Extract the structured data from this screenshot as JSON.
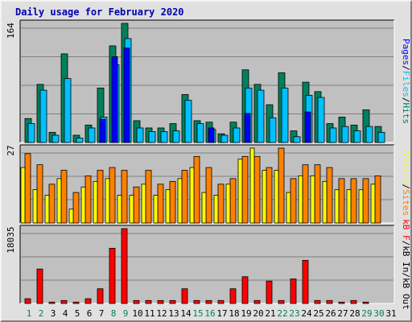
{
  "chart_data": {
    "type": "bar",
    "title": "Daily usage for February 2020",
    "days": [
      "1",
      "2",
      "3",
      "4",
      "5",
      "6",
      "7",
      "8",
      "9",
      "10",
      "11",
      "12",
      "13",
      "14",
      "15",
      "16",
      "17",
      "18",
      "19",
      "20",
      "21",
      "22",
      "23",
      "24",
      "25",
      "26",
      "27",
      "28",
      "29",
      "30",
      "31"
    ],
    "weekend_days": [
      "1",
      "2",
      "8",
      "9",
      "15",
      "16",
      "22",
      "23",
      "29",
      "30"
    ],
    "day_label_colors": {
      "weekday": "#000000",
      "weekend": "#00805c"
    },
    "panels": [
      {
        "name": "hits-files-pages",
        "max_label": "164",
        "ymax": 164,
        "legend": [
          "Pages",
          "Files",
          "Hits"
        ],
        "series": [
          {
            "name": "Hits",
            "color": "#00805c",
            "values": [
              33,
              80,
              14,
              122,
              10,
              24,
              75,
              133,
              164,
              30,
              20,
              20,
              26,
              66,
              30,
              28,
              12,
              28,
              100,
              80,
              52,
              96,
              16,
              83,
              70,
              26,
              35,
              24,
              45,
              22,
              0
            ]
          },
          {
            "name": "Files",
            "color": "#00c0ff",
            "values": [
              26,
              72,
              10,
              88,
              6,
              20,
              35,
              107,
              143,
              20,
              15,
              15,
              16,
              58,
              26,
              18,
              10,
              20,
              75,
              72,
              34,
              75,
              8,
              65,
              62,
              20,
              22,
              16,
              22,
              14,
              0
            ]
          },
          {
            "name": "Pages",
            "color": "#0000ff",
            "values": [
              0,
              0,
              0,
              0,
              0,
              0,
              32,
              118,
              130,
              0,
              0,
              0,
              0,
              0,
              0,
              20,
              0,
              0,
              40,
              0,
              0,
              0,
              0,
              42,
              0,
              0,
              0,
              0,
              0,
              0,
              0
            ]
          }
        ]
      },
      {
        "name": "visits-sites",
        "max_label": "27",
        "ymax": 27,
        "legend": [
          "Visits",
          "Sites"
        ],
        "series": [
          {
            "name": "Sites",
            "color": "#ff8000",
            "values": [
              25,
              21,
              14,
              19,
              11,
              17,
              19,
              20,
              19,
              13,
              19,
              14,
              15,
              19,
              24,
              20,
              14,
              16,
              24,
              24,
              20,
              27,
              16,
              21,
              21,
              20,
              16,
              16,
              16,
              17,
              0
            ]
          },
          {
            "name": "Visits",
            "color": "#ffff00",
            "values": [
              20,
              12,
              10,
              16,
              5,
              13,
              15,
              16,
              10,
              10,
              14,
              10,
              12,
              16,
              20,
              11,
              10,
              14,
              23,
              27,
              19,
              19,
              11,
              17,
              17,
              15,
              12,
              12,
              12,
              14,
              0
            ]
          }
        ]
      },
      {
        "name": "kbytes",
        "max_label": "18035",
        "ymax": 18035,
        "legend": [
          "kB F",
          "kB In",
          "kB Out"
        ],
        "series": [
          {
            "name": "kB F",
            "color": "#ff0000",
            "values": [
              1150,
              8300,
              335,
              720,
              335,
              1150,
              3550,
              13300,
              18035,
              720,
              720,
              720,
              720,
              3550,
              720,
              720,
              720,
              3550,
              6450,
              720,
              5400,
              720,
              5920,
              10400,
              720,
              720,
              335,
              720,
              335,
              0,
              0
            ]
          }
        ]
      }
    ]
  }
}
